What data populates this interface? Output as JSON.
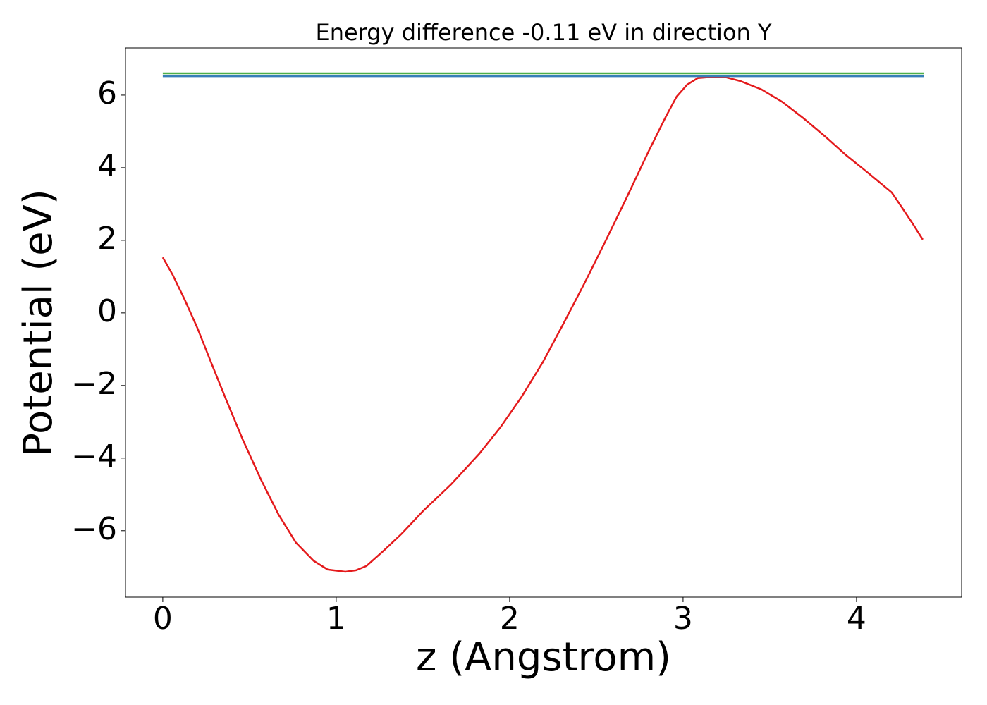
{
  "chart_data": {
    "type": "line",
    "title": "Energy difference -0.11 eV in direction Y",
    "xlabel": "z (Angstrom)",
    "ylabel": "Potential (eV)",
    "xlim": [
      -0.215,
      4.606
    ],
    "ylim": [
      -7.83,
      7.3
    ],
    "xticks": [
      0,
      1,
      2,
      3,
      4
    ],
    "yticks": [
      {
        "value": -6,
        "label": "−6"
      },
      {
        "value": -4,
        "label": "−4"
      },
      {
        "value": -2,
        "label": "−2"
      },
      0,
      2,
      4,
      6
    ],
    "series": [
      {
        "color": "#e41a1c",
        "x": [
          0,
          0.057,
          0.126,
          0.199,
          0.28,
          0.362,
          0.463,
          0.565,
          0.667,
          0.768,
          0.87,
          0.951,
          1.053,
          1.114,
          1.175,
          1.276,
          1.378,
          1.5,
          1.663,
          1.825,
          1.947,
          2.069,
          2.191,
          2.313,
          2.435,
          2.557,
          2.679,
          2.801,
          2.902,
          2.963,
          3.024,
          3.085,
          3.167,
          3.248,
          3.329,
          3.451,
          3.573,
          3.695,
          3.817,
          3.939,
          4.061,
          4.203,
          4.264,
          4.325,
          4.382
        ],
        "values": [
          1.53,
          1.05,
          0.37,
          -0.41,
          -1.38,
          -2.35,
          -3.51,
          -4.58,
          -5.55,
          -6.33,
          -6.83,
          -7.07,
          -7.13,
          -7.09,
          -6.97,
          -6.54,
          -6.08,
          -5.46,
          -4.72,
          -3.88,
          -3.15,
          -2.31,
          -1.36,
          -0.27,
          0.85,
          2.02,
          3.22,
          4.45,
          5.42,
          5.96,
          6.29,
          6.47,
          6.5,
          6.49,
          6.39,
          6.16,
          5.81,
          5.36,
          4.87,
          4.35,
          3.88,
          3.32,
          2.89,
          2.45,
          2.02
        ]
      },
      {
        "color": "#4daf4a",
        "x": [
          0,
          4.39
        ],
        "values": [
          6.6,
          6.6
        ]
      },
      {
        "color": "#377eb8",
        "x": [
          0,
          4.39
        ],
        "values": [
          6.52,
          6.52
        ]
      }
    ]
  }
}
